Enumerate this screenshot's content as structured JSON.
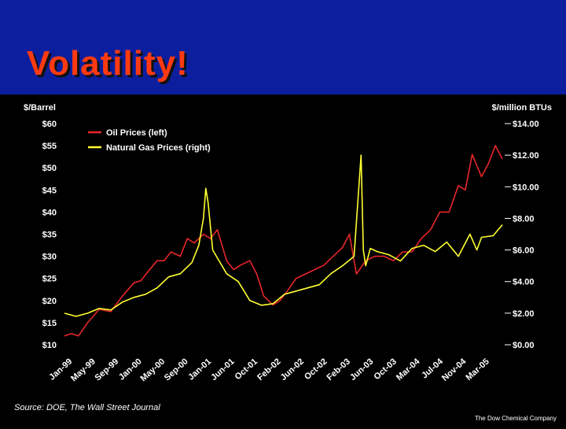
{
  "slide": {
    "title": "Volatility!",
    "source": "Source: DOE, The Wall Street Journal",
    "company": "The Dow Chemical Company"
  },
  "colors": {
    "header_bg": "#0b1f9e",
    "title": "#ff3a12",
    "oil": "#e8262a",
    "gas": "#ffff30"
  },
  "chart_data": {
    "type": "line",
    "left_axis_label": "$/Barrel",
    "right_axis_label": "$/million BTUs",
    "left_ticks": [
      "$60",
      "$55",
      "$50",
      "$45",
      "$40",
      "$35",
      "$30",
      "$25",
      "$20",
      "$15",
      "$10"
    ],
    "left_values": [
      60,
      55,
      50,
      45,
      40,
      35,
      30,
      25,
      20,
      15,
      10
    ],
    "right_ticks": [
      "$14.00",
      "$12.00",
      "$10.00",
      "$8.00",
      "$6.00",
      "$4.00",
      "$2.00",
      "$0.00"
    ],
    "right_values": [
      14,
      12,
      10,
      8,
      6,
      4,
      2,
      0
    ],
    "left_range": [
      10,
      60
    ],
    "right_range": [
      0,
      14
    ],
    "x_labels": [
      "Jan-99",
      "May-99",
      "Sep-99",
      "Jan-00",
      "May-00",
      "Sep-00",
      "Jan-01",
      "Jun-01",
      "Oct-01",
      "Feb-02",
      "Jun-02",
      "Oct-02",
      "Feb-03",
      "Jun-03",
      "Oct-03",
      "Mar-04",
      "Jul-04",
      "Nov-04",
      "Mar-05"
    ],
    "x_range": [
      0,
      19
    ],
    "legend": {
      "placement": "top-left",
      "entries": [
        "Oil Prices (left)",
        "Natural Gas Prices (right)"
      ]
    },
    "series": [
      {
        "name": "Oil Prices (left)",
        "axis": "left",
        "x": [
          0,
          0.3,
          0.6,
          1.0,
          1.5,
          2.0,
          2.5,
          3.0,
          3.3,
          3.6,
          4.0,
          4.3,
          4.6,
          5.0,
          5.3,
          5.6,
          6.0,
          6.3,
          6.6,
          7.0,
          7.3,
          7.6,
          8.0,
          8.3,
          8.6,
          9.0,
          9.3,
          9.6,
          10.0,
          10.4,
          10.8,
          11.2,
          11.6,
          12.0,
          12.3,
          12.6,
          13.0,
          13.4,
          13.8,
          14.2,
          14.6,
          15.0,
          15.4,
          15.8,
          16.2,
          16.6,
          17.0,
          17.3,
          17.6,
          18.0,
          18.3,
          18.6,
          18.9
        ],
        "y": [
          12,
          12.5,
          12,
          15,
          18,
          17.5,
          21,
          24,
          24.5,
          26.5,
          29,
          29,
          31,
          30,
          34,
          33,
          35,
          34,
          36,
          29,
          27,
          28,
          29,
          26,
          21,
          19,
          20,
          22,
          25,
          26,
          27,
          28,
          30,
          32,
          35,
          26,
          29,
          30,
          30,
          29,
          31,
          31,
          34,
          36,
          40,
          40,
          46,
          45,
          53,
          48,
          51,
          55,
          52
        ]
      },
      {
        "name": "Natural Gas Prices (right)",
        "axis": "right",
        "x": [
          0,
          0.5,
          1.0,
          1.5,
          2.0,
          2.5,
          3.0,
          3.5,
          4.0,
          4.5,
          5.0,
          5.5,
          5.8,
          6.0,
          6.1,
          6.2,
          6.4,
          6.6,
          7.0,
          7.5,
          8.0,
          8.5,
          9.0,
          9.5,
          10.0,
          10.5,
          11.0,
          11.5,
          12.0,
          12.5,
          12.8,
          12.9,
          13.0,
          13.2,
          13.5,
          14.0,
          14.5,
          15.0,
          15.5,
          16.0,
          16.5,
          17.0,
          17.5,
          17.8,
          18.0,
          18.5,
          18.9
        ],
        "y": [
          2.0,
          1.8,
          2.0,
          2.3,
          2.2,
          2.7,
          3.0,
          3.2,
          3.6,
          4.3,
          4.5,
          5.2,
          6.3,
          8.0,
          9.9,
          9.0,
          6.0,
          5.5,
          4.5,
          4.0,
          2.8,
          2.5,
          2.6,
          3.2,
          3.4,
          3.6,
          3.8,
          4.5,
          5.0,
          5.6,
          12.0,
          6.0,
          5.0,
          6.1,
          5.9,
          5.7,
          5.3,
          6.1,
          6.3,
          5.9,
          6.5,
          5.6,
          7.0,
          6.0,
          6.8,
          6.9,
          7.6
        ]
      }
    ]
  }
}
